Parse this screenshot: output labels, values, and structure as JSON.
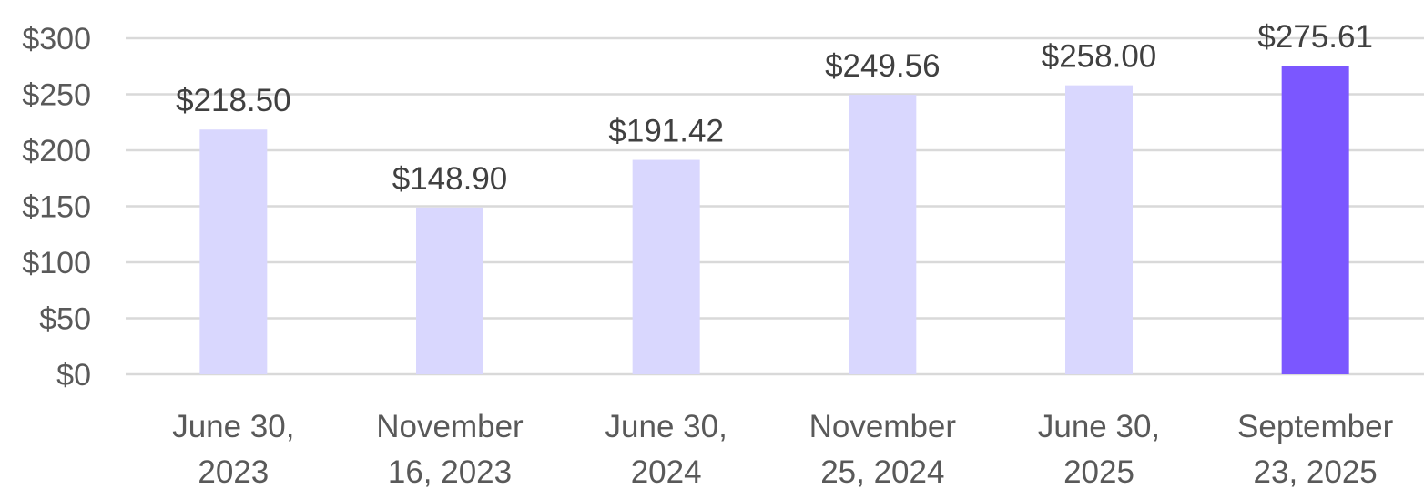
{
  "chart_data": {
    "type": "bar",
    "title": "",
    "xlabel": "",
    "ylabel": "",
    "ylim": [
      0,
      300
    ],
    "yticks": [
      0,
      50,
      100,
      150,
      200,
      250,
      300
    ],
    "ytick_labels": [
      "$0",
      "$50",
      "$100",
      "$150",
      "$200",
      "$250",
      "$300"
    ],
    "grid": true,
    "categories": [
      [
        "June 30,",
        "2023"
      ],
      [
        "November",
        "16, 2023"
      ],
      [
        "June 30,",
        "2024"
      ],
      [
        "November",
        "25, 2024"
      ],
      [
        "June 30,",
        "2025"
      ],
      [
        "September",
        "23, 2025"
      ]
    ],
    "values": [
      218.5,
      148.9,
      191.42,
      249.56,
      258.0,
      275.61
    ],
    "data_labels": [
      "$218.50",
      "$148.90",
      "$191.42",
      "$249.56",
      "$258.00",
      "$275.61"
    ],
    "colors": {
      "bar": "#D9D7FE",
      "highlight": "#7B57FF",
      "highlight_index": 5
    }
  }
}
